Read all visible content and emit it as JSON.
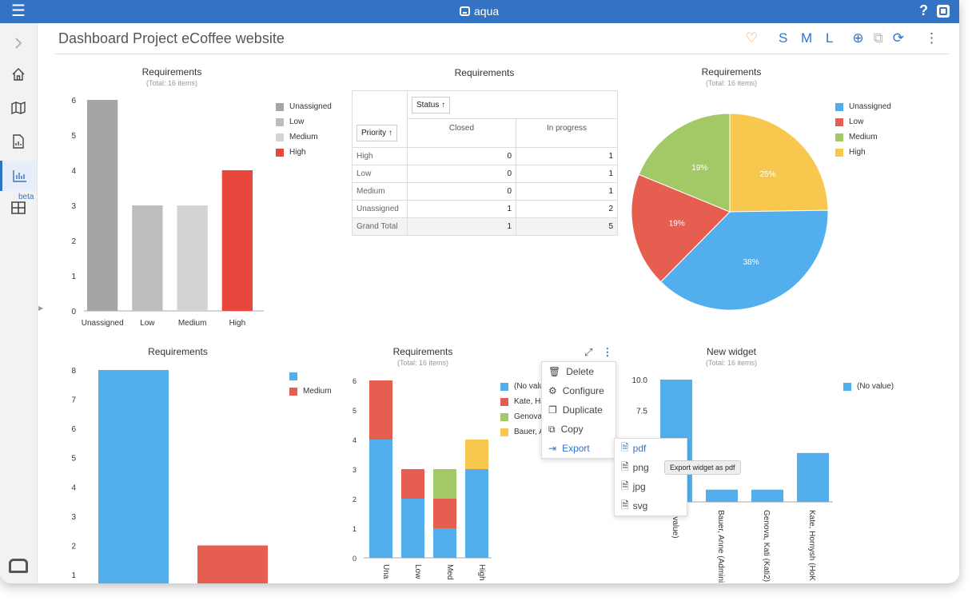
{
  "app": {
    "title": "aqua"
  },
  "header": {
    "title": "Dashboard Project eCoffee website",
    "sizes": "S M L"
  },
  "sidebar": {
    "beta": "beta"
  },
  "colors": {
    "accent": "#3473c3",
    "blue": "#52aeec",
    "red": "#e65e4f",
    "green": "#a3c966",
    "yellow": "#f7c84d",
    "gray_dark": "#a5a5a5",
    "gray": "#bdbdbd",
    "gray_light": "#d3d3d3",
    "high_red": "#e8473e"
  },
  "widgets": {
    "w1": {
      "title": "Requirements",
      "subtitle": "(Total: 16 items)"
    },
    "w2": {
      "title": "Requirements"
    },
    "w3": {
      "title": "Requirements",
      "subtitle": "(Total: 16 items)"
    },
    "w4": {
      "title": "Requirements"
    },
    "w5": {
      "title": "Requirements",
      "subtitle": "(Total: 16 items)"
    },
    "w6": {
      "title": "New widget",
      "subtitle": "(Total: 16 items)"
    }
  },
  "pivot": {
    "status_chip": "Status ↑",
    "priority_chip": "Priority ↑",
    "columns": [
      "Closed",
      "In progress"
    ],
    "rows": [
      {
        "label": "High",
        "v1": "0",
        "v2": "1"
      },
      {
        "label": "Low",
        "v1": "0",
        "v2": "1"
      },
      {
        "label": "Medium",
        "v1": "0",
        "v2": "1"
      },
      {
        "label": "Unassigned",
        "v1": "1",
        "v2": "2"
      },
      {
        "label": "Grand Total",
        "v1": "1",
        "v2": "5"
      }
    ]
  },
  "legends": {
    "w1": [
      "Unassigned",
      "Low",
      "Medium",
      "High"
    ],
    "w3": [
      "Unassigned",
      "Low",
      "Medium",
      "High"
    ],
    "w4": [
      "",
      "Medium"
    ],
    "w5": [
      "(No valu",
      "Kate, Ho",
      "Genova",
      "Bauer, A"
    ],
    "w6": [
      "(No value)"
    ]
  },
  "context_menu": {
    "delete": "Delete",
    "configure": "Configure",
    "duplicate": "Duplicate",
    "copy": "Copy",
    "export": "Export"
  },
  "export_menu": {
    "pdf": "pdf",
    "png": "png",
    "jpg": "jpg",
    "svg": "svg"
  },
  "tooltip": "Export widget as pdf",
  "chart_data": [
    {
      "type": "bar",
      "title": "Requirements",
      "subtitle": "(Total: 16 items)",
      "categories": [
        "Unassigned",
        "Low",
        "Medium",
        "High"
      ],
      "values": [
        6,
        3,
        3,
        4
      ],
      "yticks": [
        "0",
        "1",
        "2",
        "3",
        "4",
        "5",
        "6"
      ],
      "ylim": [
        0,
        6
      ]
    },
    {
      "type": "pie",
      "title": "Requirements",
      "subtitle": "(Total: 16 items)",
      "slices": [
        {
          "name": "High",
          "value": 25,
          "label": "25%"
        },
        {
          "name": "Unassigned",
          "value": 38,
          "label": "38%"
        },
        {
          "name": "Low",
          "value": 19,
          "label": "19%"
        },
        {
          "name": "Medium",
          "value": 19,
          "label": "19%"
        }
      ]
    },
    {
      "type": "bar",
      "title": "Requirements",
      "values": [
        8,
        2
      ],
      "yticks": [
        "1",
        "2",
        "3",
        "4",
        "5",
        "6",
        "7",
        "8"
      ],
      "ylim": [
        0.7,
        8
      ]
    },
    {
      "type": "bar",
      "title": "Requirements",
      "subtitle": "(Total: 16 items)",
      "categories": [
        "Una",
        "Low",
        "Med",
        "High"
      ],
      "series": [
        {
          "values": [
            4,
            2,
            1,
            3
          ]
        },
        {
          "values": [
            2,
            1,
            1,
            0
          ]
        },
        {
          "values": [
            0,
            0,
            1,
            0
          ]
        },
        {
          "values": [
            0,
            0,
            0,
            1
          ]
        }
      ],
      "yticks": [
        "0",
        "1",
        "2",
        "3",
        "4",
        "5",
        "6"
      ],
      "ylim": [
        0,
        6
      ]
    },
    {
      "type": "bar",
      "title": "New widget",
      "subtitle": "(Total: 16 items)",
      "categories": [
        "o value)",
        "Bauer, Anne (Admini",
        "Genova, Kati (Kati2)",
        "Kate, Hornysh (HoK"
      ],
      "values": [
        10,
        1,
        1,
        4
      ],
      "yticks": [
        "7.5",
        "10.0"
      ],
      "ylim": [
        0,
        10
      ]
    }
  ]
}
